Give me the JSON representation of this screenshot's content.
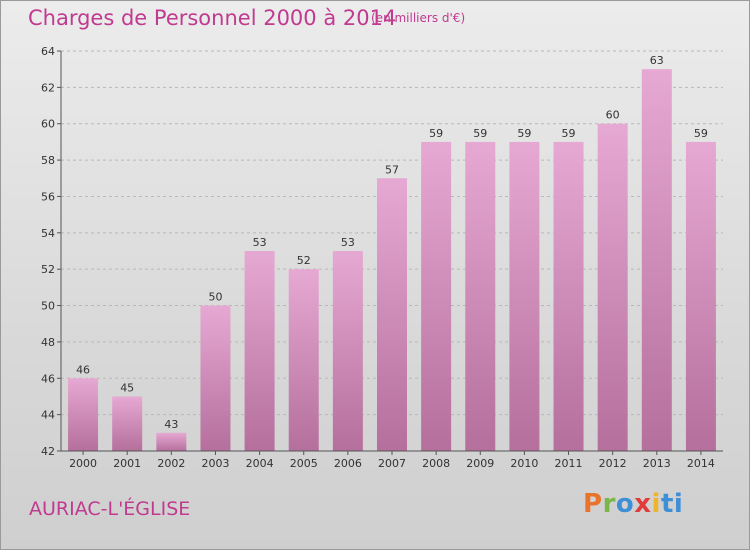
{
  "title": "Charges de Personnel 2000 à 2014",
  "subtitle": "(en milliers d'€)",
  "place": "AURIAC-L'ÉGLISE",
  "logo": "Proxiti",
  "colors": {
    "accent": "#c03a8f",
    "bar_top": "#e6a9d3",
    "bar_bottom": "#b56f9c"
  },
  "chart_data": {
    "type": "bar",
    "categories": [
      "2000",
      "2001",
      "2002",
      "2003",
      "2004",
      "2005",
      "2006",
      "2007",
      "2008",
      "2009",
      "2010",
      "2011",
      "2012",
      "2013",
      "2014"
    ],
    "values": [
      46,
      45,
      43,
      50,
      53,
      52,
      53,
      57,
      59,
      59,
      59,
      59,
      60,
      63,
      59
    ],
    "ylim": [
      42,
      64
    ],
    "yticks": [
      42,
      44,
      46,
      48,
      50,
      52,
      54,
      56,
      58,
      60,
      62,
      64
    ],
    "grid": true
  }
}
